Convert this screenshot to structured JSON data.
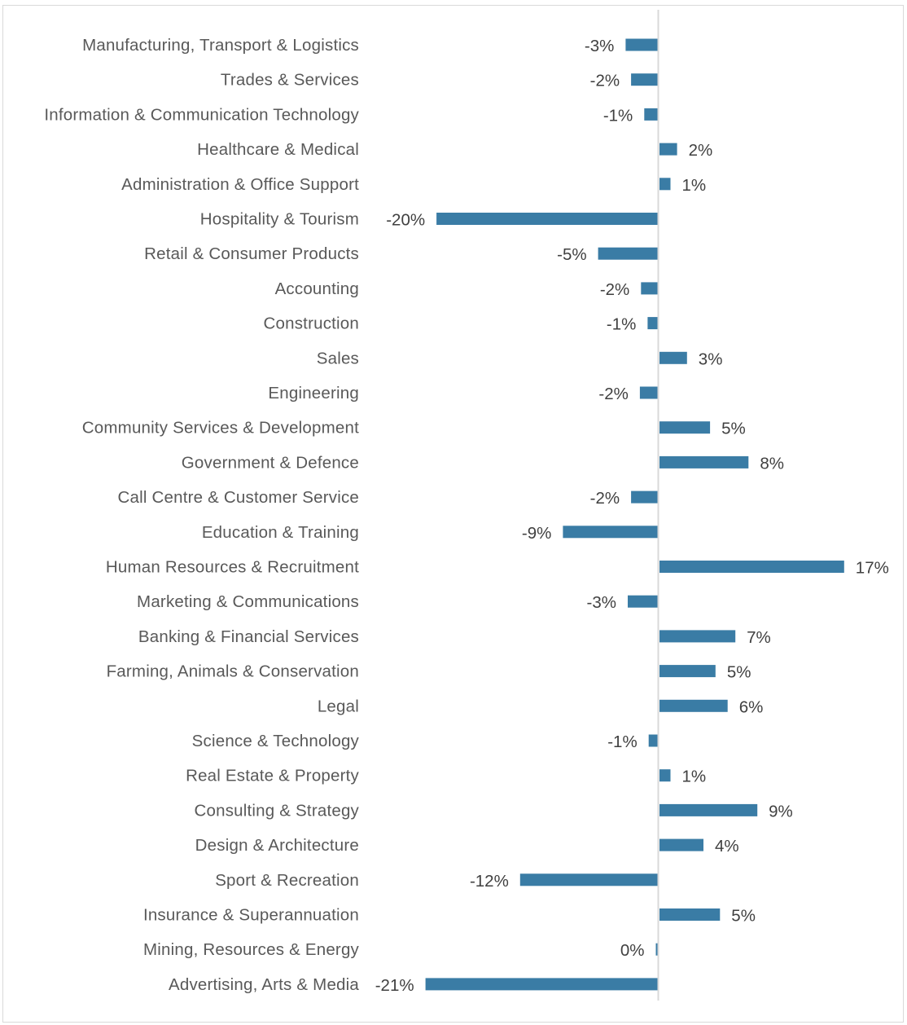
{
  "chart_data": {
    "type": "bar",
    "orientation": "horizontal",
    "title": "",
    "xlabel": "",
    "ylabel": "",
    "xlim": [
      -22,
      18
    ],
    "grid": false,
    "legend": "none",
    "bar_color": "#3A7CA5",
    "axis_color": "#d9d9d9",
    "categories": [
      "Manufacturing, Transport & Logistics",
      "Trades & Services",
      "Information & Communication Technology",
      "Healthcare & Medical",
      "Administration & Office Support",
      "Hospitality & Tourism",
      "Retail & Consumer Products",
      "Accounting",
      "Construction",
      "Sales",
      "Engineering",
      "Community Services & Development",
      "Government & Defence",
      "Call Centre & Customer Service",
      "Education & Training",
      "Human Resources & Recruitment",
      "Marketing & Communications",
      "Banking & Financial Services",
      "Farming, Animals & Conservation",
      "Legal",
      "Science & Technology",
      "Real Estate & Property",
      "Consulting & Strategy",
      "Design & Architecture",
      "Sport & Recreation",
      "Insurance & Superannuation",
      "Mining, Resources & Energy",
      "Advertising, Arts & Media"
    ],
    "values": [
      -2.9,
      -2.4,
      -1.2,
      1.6,
      1.0,
      -20.1,
      -5.4,
      -1.5,
      -0.9,
      2.5,
      -1.6,
      4.6,
      8.1,
      -2.4,
      -8.6,
      16.8,
      -2.7,
      6.9,
      5.1,
      6.2,
      -0.8,
      1.0,
      8.9,
      4.0,
      -12.5,
      5.5,
      -0.1,
      -21.1
    ],
    "labels": [
      "-3%",
      "-2%",
      "-1%",
      "2%",
      "1%",
      "-20%",
      "-5%",
      "-2%",
      "-1%",
      "3%",
      "-2%",
      "5%",
      "8%",
      "-2%",
      "-9%",
      "17%",
      "-3%",
      "7%",
      "5%",
      "6%",
      "-1%",
      "1%",
      "9%",
      "4%",
      "-12%",
      "5%",
      "0%",
      "-21%"
    ]
  }
}
